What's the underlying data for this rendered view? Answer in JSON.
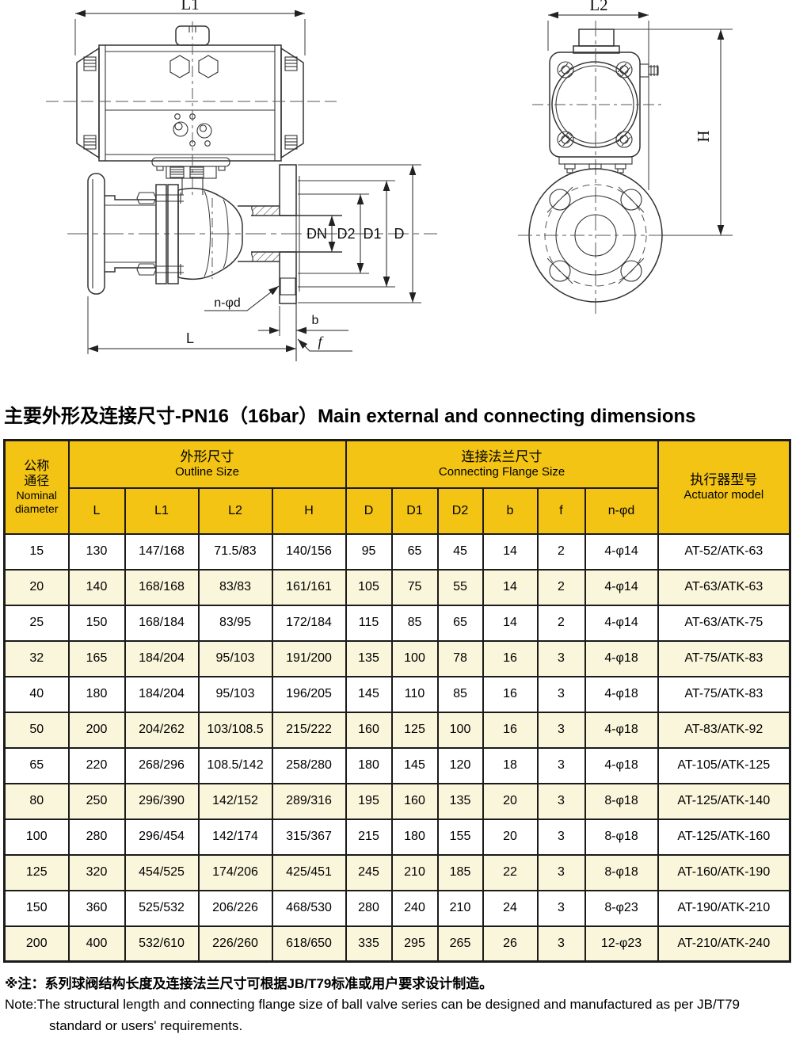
{
  "title": "主要外形及连接尺寸-PN16（16bar）Main external and connecting dimensions",
  "drawing": {
    "labels": {
      "l1": "L1",
      "l2": "L2",
      "h": "H",
      "dn": "DN",
      "d2": "D2",
      "d1": "D1",
      "d": "D",
      "n_phi_d": "n-φd",
      "b": "b",
      "f": "f",
      "l": "L"
    }
  },
  "table": {
    "header": {
      "nominal_zh1": "公称",
      "nominal_zh2": "通径",
      "nominal_en1": "Nominal",
      "nominal_en2": "diameter",
      "outline_zh": "外形尺寸",
      "outline_en": "Outline Size",
      "flange_zh": "连接法兰尺寸",
      "flange_en": "Connecting Flange Size",
      "actuator_zh": "执行器型号",
      "actuator_en": "Actuator model",
      "sub": [
        "L",
        "L1",
        "L2",
        "H",
        "D",
        "D1",
        "D2",
        "b",
        "f",
        "n-φd"
      ]
    },
    "rows": [
      [
        "15",
        "130",
        "147/168",
        "71.5/83",
        "140/156",
        "95",
        "65",
        "45",
        "14",
        "2",
        "4-φ14",
        "AT-52/ATK-63"
      ],
      [
        "20",
        "140",
        "168/168",
        "83/83",
        "161/161",
        "105",
        "75",
        "55",
        "14",
        "2",
        "4-φ14",
        "AT-63/ATK-63"
      ],
      [
        "25",
        "150",
        "168/184",
        "83/95",
        "172/184",
        "115",
        "85",
        "65",
        "14",
        "2",
        "4-φ14",
        "AT-63/ATK-75"
      ],
      [
        "32",
        "165",
        "184/204",
        "95/103",
        "191/200",
        "135",
        "100",
        "78",
        "16",
        "3",
        "4-φ18",
        "AT-75/ATK-83"
      ],
      [
        "40",
        "180",
        "184/204",
        "95/103",
        "196/205",
        "145",
        "110",
        "85",
        "16",
        "3",
        "4-φ18",
        "AT-75/ATK-83"
      ],
      [
        "50",
        "200",
        "204/262",
        "103/108.5",
        "215/222",
        "160",
        "125",
        "100",
        "16",
        "3",
        "4-φ18",
        "AT-83/ATK-92"
      ],
      [
        "65",
        "220",
        "268/296",
        "108.5/142",
        "258/280",
        "180",
        "145",
        "120",
        "18",
        "3",
        "4-φ18",
        "AT-105/ATK-125"
      ],
      [
        "80",
        "250",
        "296/390",
        "142/152",
        "289/316",
        "195",
        "160",
        "135",
        "20",
        "3",
        "8-φ18",
        "AT-125/ATK-140"
      ],
      [
        "100",
        "280",
        "296/454",
        "142/174",
        "315/367",
        "215",
        "180",
        "155",
        "20",
        "3",
        "8-φ18",
        "AT-125/ATK-160"
      ],
      [
        "125",
        "320",
        "454/525",
        "174/206",
        "425/451",
        "245",
        "210",
        "185",
        "22",
        "3",
        "8-φ18",
        "AT-160/ATK-190"
      ],
      [
        "150",
        "360",
        "525/532",
        "206/226",
        "468/530",
        "280",
        "240",
        "210",
        "24",
        "3",
        "8-φ23",
        "AT-190/ATK-210"
      ],
      [
        "200",
        "400",
        "532/610",
        "226/260",
        "618/650",
        "335",
        "295",
        "265",
        "26",
        "3",
        "12-φ23",
        "AT-210/ATK-240"
      ]
    ]
  },
  "notes": {
    "zh": "※注：系列球阀结构长度及连接法兰尺寸可根据JB/T79标准或用户要求设计制造。",
    "en1": "Note:The structural length and connecting flange size of ball valve series can be designed and manufactured as per JB/T79",
    "en2": "standard or users' requirements."
  },
  "colors": {
    "header_bg": "#F3C414",
    "row_alt_bg": "#FAF6DB",
    "border": "#1b1b1b"
  }
}
